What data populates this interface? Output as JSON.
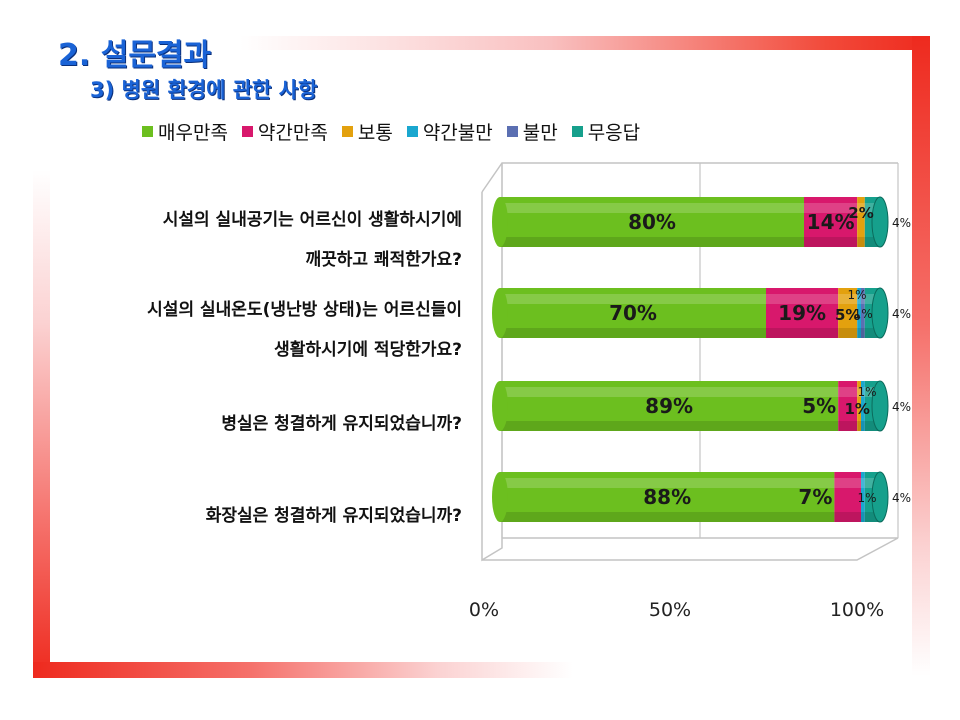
{
  "title": "2. 설문결과",
  "subtitle": "3) 병원 환경에 관한 사항",
  "chart_data": {
    "type": "bar",
    "orientation": "horizontal",
    "stacked": true,
    "percent": true,
    "legend_position": "top",
    "xlim": [
      0,
      100
    ],
    "x_ticks": [
      "0%",
      "50%",
      "100%"
    ],
    "categories": [
      [
        "시설의 실내공기는 어르신이 생활하시기에",
        "깨끗하고 쾌적한가요?"
      ],
      [
        "시설의 실내온도(냉난방 상태)는 어르신들이",
        "생활하시기에 적당한가요?"
      ],
      [
        "병실은 청결하게 유지되었습니까?"
      ],
      [
        "화장실은 청결하게 유지되었습니까?"
      ]
    ],
    "series": [
      {
        "name": "매우만족",
        "color": "#6cbf1f",
        "values": [
          80,
          70,
          89,
          88
        ]
      },
      {
        "name": "약간만족",
        "color": "#d8186c",
        "values": [
          14,
          19,
          5,
          7
        ]
      },
      {
        "name": "보통",
        "color": "#e3a10e",
        "values": [
          2,
          5,
          1,
          0
        ]
      },
      {
        "name": "약간불만",
        "color": "#1aa7cf",
        "values": [
          0,
          1,
          1,
          1
        ]
      },
      {
        "name": "불만",
        "color": "#5b6fb2",
        "values": [
          0,
          1,
          0,
          0
        ]
      },
      {
        "name": "무응답",
        "color": "#16a08c",
        "values": [
          4,
          4,
          4,
          4
        ]
      }
    ],
    "data_labels": [
      [
        "80%",
        "14%",
        "2%",
        "",
        "",
        "4%"
      ],
      [
        "70%",
        "19%",
        "5%",
        "1%",
        "1%",
        "4%"
      ],
      [
        "89%",
        "5%",
        "1%",
        "1%",
        "",
        "4%"
      ],
      [
        "88%",
        "7%",
        "",
        "1%",
        "",
        "4%"
      ]
    ]
  }
}
